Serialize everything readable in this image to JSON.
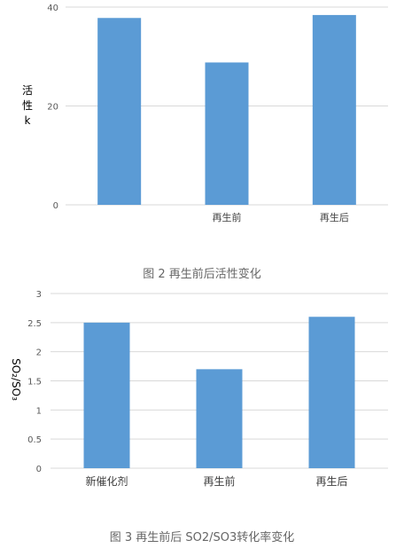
{
  "chart_data": [
    {
      "type": "bar",
      "categories": [
        "",
        "再生前",
        "再生后"
      ],
      "values": [
        37.8,
        28.8,
        38.4
      ],
      "ylabel_chars": [
        "活",
        "性",
        "k"
      ],
      "ylim": [
        0,
        40
      ],
      "yticks": [
        0,
        20,
        40
      ],
      "grid": true,
      "bar_color": "#5b9bd5",
      "caption": "图 2 再生前后活性变化"
    },
    {
      "type": "bar",
      "categories": [
        "新催化剂",
        "再生前",
        "再生后"
      ],
      "values": [
        2.5,
        1.7,
        2.6
      ],
      "ylabel": "SO₂/SO₃",
      "ylim": [
        0,
        3
      ],
      "yticks": [
        "0",
        "0.5",
        "1",
        "1.5",
        "2",
        "2.5",
        "3"
      ],
      "grid": true,
      "bar_color": "#5b9bd5",
      "caption": "图 3 再生前后 SO2/SO3转化率变化"
    }
  ]
}
